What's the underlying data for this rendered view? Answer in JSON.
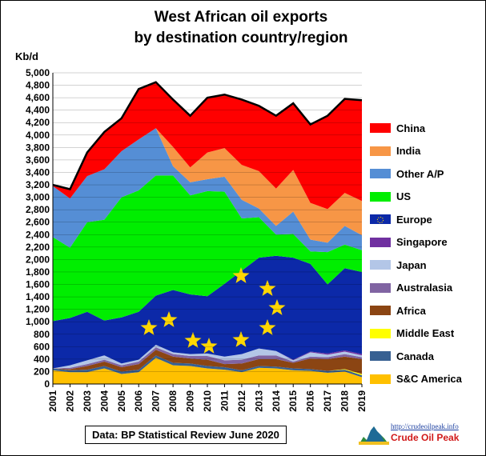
{
  "title_line1": "West African oil exports",
  "title_line2": "by destination country/region",
  "unit_label": "Kb/d",
  "source_note": "Data: BP Statistical Review June 2020",
  "logo": {
    "url_text": "http://crudeoilpeak.info",
    "name": "Crude Oil Peak"
  },
  "chart_data": {
    "type": "area",
    "stacked": true,
    "x": [
      "2001",
      "2002",
      "2003",
      "2004",
      "2005",
      "2006",
      "2007",
      "2008",
      "2009",
      "2010",
      "2011",
      "2012",
      "2013",
      "2014",
      "2015",
      "2016",
      "2017",
      "2018",
      "2019"
    ],
    "ylim": [
      0,
      5000
    ],
    "ytick_step": 200,
    "ylabel": "Kb/d",
    "grid": true,
    "legend_position": "right",
    "series": [
      {
        "name": "S&C America",
        "color": "#ffc000",
        "values": [
          220,
          190,
          190,
          250,
          160,
          190,
          420,
          300,
          290,
          250,
          230,
          190,
          260,
          250,
          220,
          210,
          180,
          200,
          110
        ]
      },
      {
        "name": "Canada",
        "color": "#376092",
        "values": [
          30,
          30,
          40,
          40,
          40,
          40,
          40,
          40,
          40,
          40,
          40,
          30,
          30,
          30,
          30,
          30,
          30,
          30,
          30
        ]
      },
      {
        "name": "Middle East",
        "color": "#ffff00",
        "values": [
          0,
          0,
          0,
          0,
          0,
          0,
          0,
          0,
          0,
          0,
          0,
          0,
          0,
          0,
          0,
          0,
          0,
          10,
          20
        ]
      },
      {
        "name": "Africa",
        "color": "#8b4513",
        "values": [
          0,
          20,
          60,
          70,
          70,
          90,
          90,
          100,
          80,
          100,
          50,
          110,
          110,
          120,
          90,
          170,
          190,
          200,
          240
        ]
      },
      {
        "name": "Australasia",
        "color": "#8064a2",
        "values": [
          0,
          20,
          30,
          30,
          30,
          40,
          40,
          40,
          40,
          60,
          60,
          60,
          60,
          60,
          20,
          30,
          30,
          40,
          30
        ]
      },
      {
        "name": "Japan",
        "color": "#b3c6e7",
        "values": [
          0,
          40,
          60,
          70,
          30,
          30,
          40,
          30,
          30,
          40,
          60,
          90,
          110,
          70,
          20,
          70,
          40,
          40,
          30
        ]
      },
      {
        "name": "Singapore",
        "color": "#7030a0",
        "values": [
          0,
          0,
          0,
          0,
          0,
          0,
          0,
          0,
          0,
          0,
          0,
          0,
          0,
          0,
          10,
          10,
          20,
          20,
          20
        ]
      },
      {
        "name": "Europe",
        "color": "#0c29a8",
        "values": [
          760,
          760,
          780,
          560,
          740,
          770,
          790,
          1000,
          960,
          920,
          1170,
          1340,
          1460,
          1530,
          1640,
          1410,
          1110,
          1320,
          1320
        ]
      },
      {
        "name": "US",
        "color": "#00ee00",
        "values": [
          1350,
          1130,
          1440,
          1620,
          1930,
          1950,
          1930,
          1840,
          1590,
          1690,
          1480,
          840,
          650,
          340,
          380,
          200,
          520,
          380,
          350
        ]
      },
      {
        "name": "Other A/P",
        "color": "#558ed5",
        "values": [
          820,
          790,
          740,
          810,
          740,
          820,
          760,
          150,
          210,
          190,
          240,
          300,
          140,
          140,
          360,
          190,
          150,
          300,
          240
        ]
      },
      {
        "name": "India",
        "color": "#f79646",
        "values": [
          0,
          0,
          0,
          0,
          0,
          0,
          0,
          310,
          240,
          430,
          460,
          560,
          600,
          600,
          670,
          590,
          540,
          530,
          550
        ]
      },
      {
        "name": "China",
        "color": "#ff0000",
        "values": [
          20,
          150,
          380,
          600,
          530,
          810,
          740,
          760,
          830,
          880,
          860,
          1050,
          1050,
          1170,
          1070,
          1260,
          1500,
          1510,
          1620
        ]
      }
    ]
  }
}
